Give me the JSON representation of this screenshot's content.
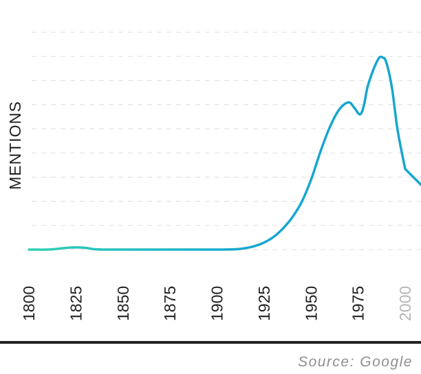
{
  "chart_data": {
    "type": "line",
    "title": "",
    "xlabel": "",
    "ylabel": "MENTIONS",
    "x": [
      1800,
      1810,
      1815,
      1820,
      1825,
      1830,
      1835,
      1840,
      1850,
      1875,
      1900,
      1910,
      1915,
      1920,
      1925,
      1930,
      1935,
      1940,
      1945,
      1950,
      1955,
      1960,
      1965,
      1970,
      1973,
      1976,
      1978,
      1980,
      1983,
      1986,
      1988,
      1990,
      1993,
      1996,
      2000
    ],
    "values": [
      0,
      0,
      0.1,
      0.25,
      0.3,
      0.25,
      0.05,
      0,
      0,
      0,
      0,
      0.05,
      0.2,
      0.5,
      1.0,
      1.8,
      3.0,
      4.6,
      6.8,
      10.0,
      14.0,
      17.5,
      20.0,
      21.0,
      20.2,
      19.3,
      20.5,
      23.2,
      25.6,
      27.3,
      27.4,
      26.7,
      23.0,
      17.0,
      11.5
    ],
    "xticks": [
      "1800",
      "1825",
      "1850",
      "1875",
      "1900",
      "1925",
      "1950",
      "1975",
      "2000"
    ],
    "xlim": [
      1800,
      2005
    ],
    "ylim": [
      0,
      31
    ],
    "grid": true,
    "legend": "none",
    "colors": {
      "start": "#2fd1b2",
      "end": "#17a6cf",
      "grid": "#e4e4e4",
      "muted_tick": "#b5b5b5"
    }
  },
  "source": "Source: Google"
}
